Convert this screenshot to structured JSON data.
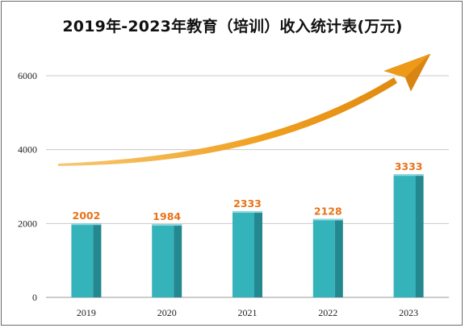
{
  "chart_data": {
    "type": "bar",
    "title": "2019年-2023年教育（培训）收入统计表(万元)",
    "xlabel": "",
    "ylabel": "",
    "categories": [
      "2019",
      "2020",
      "2021",
      "2022",
      "2023"
    ],
    "values": [
      2002,
      1984,
      2333,
      2128,
      3333
    ],
    "data_labels": [
      "2002",
      "1984",
      "2333",
      "2128",
      "3333"
    ],
    "ylim": [
      0,
      6000
    ],
    "yticks": [
      0,
      2000,
      4000,
      6000
    ],
    "ytick_labels": [
      "0",
      "2000",
      "4000",
      "6000"
    ],
    "grid": true,
    "legend": "none",
    "annotations": [
      "upward-trend-arrow"
    ],
    "colors": {
      "bar": "#35b3bb",
      "bar_side": "#23888f",
      "data_label": "#e8731a",
      "arrow": "#f0a020",
      "grid": "#c9c9c9"
    }
  }
}
